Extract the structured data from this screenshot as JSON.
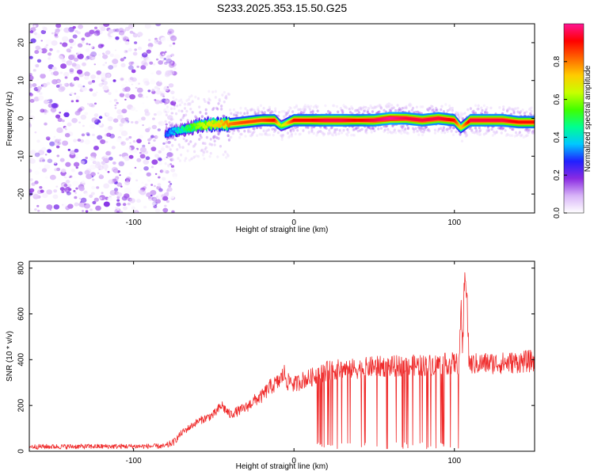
{
  "chart_data": [
    {
      "type": "heatmap",
      "title": "S233.2025.353.15.50.G25",
      "xlabel": "Height of straight line (km)",
      "ylabel": "Frequency (Hz)",
      "xlim": [
        -165,
        150
      ],
      "ylim": [
        -25,
        25
      ],
      "xticks": [
        -100,
        0,
        100
      ],
      "xtick_labels": [
        "-100",
        "0",
        "100"
      ],
      "yticks": [
        -20,
        -10,
        0,
        10,
        20
      ],
      "ytick_labels": [
        "-20",
        "-10",
        "0",
        "10",
        "20"
      ],
      "colorbar": {
        "label": "Normalized spectral amplitude",
        "range": [
          0,
          1
        ],
        "ticks": [
          0.0,
          0.2,
          0.4,
          0.6,
          0.8
        ],
        "tick_labels": [
          "0.0",
          "0.2",
          "0.4",
          "0.6",
          "0.8"
        ],
        "colors": [
          "#ffffff",
          "#d8b4f8",
          "#8a2be2",
          "#2020ff",
          "#00c8ff",
          "#00ff90",
          "#40ff00",
          "#c8ff00",
          "#ffcc00",
          "#ff6600",
          "#ff0000",
          "#ff1493"
        ]
      },
      "noise_region_x": [
        -165,
        -80
      ],
      "ridge": {
        "description": "dominant frequency vs height",
        "x": [
          -80,
          -70,
          -60,
          -50,
          -40,
          -30,
          -20,
          -12,
          -8,
          0,
          10,
          20,
          30,
          40,
          50,
          60,
          70,
          80,
          90,
          100,
          104,
          110,
          120,
          130,
          140,
          150
        ],
        "freq": [
          -4,
          -3,
          -2,
          -1.5,
          -1.5,
          -1,
          -0.5,
          -0.5,
          -2,
          -0.5,
          -0.5,
          -0.5,
          -0.5,
          -0.5,
          -0.5,
          0,
          0,
          -0.5,
          0,
          -0.5,
          -2.5,
          -0.5,
          -0.5,
          -0.5,
          -1,
          -1
        ],
        "amplitude": [
          0.3,
          0.45,
          0.6,
          0.7,
          0.8,
          0.85,
          0.85,
          0.9,
          0.6,
          0.9,
          0.9,
          0.95,
          0.95,
          0.9,
          0.95,
          1.0,
          0.95,
          0.95,
          0.95,
          0.9,
          0.7,
          0.95,
          0.95,
          0.95,
          0.9,
          0.9
        ]
      }
    },
    {
      "type": "line",
      "title": "",
      "xlabel": "Height of straight line (km)",
      "ylabel": "SNR (10 * v/v)",
      "xlim": [
        -165,
        150
      ],
      "ylim": [
        0,
        830
      ],
      "xticks": [
        -100,
        0,
        100
      ],
      "xtick_labels": [
        "-100",
        "0",
        "100"
      ],
      "yticks": [
        0,
        200,
        400,
        600,
        800
      ],
      "ytick_labels": [
        "0",
        "200",
        "400",
        "600",
        "800"
      ],
      "color": "#ef2b2b",
      "series": [
        {
          "name": "SNR",
          "x": [
            -165,
            -80,
            -75,
            -70,
            -60,
            -50,
            -45,
            -40,
            -30,
            -25,
            -20,
            -15,
            -10,
            -8,
            -6,
            -4,
            -2,
            0,
            5,
            10,
            13,
            15,
            20,
            30,
            40,
            50,
            60,
            70,
            80,
            90,
            100,
            103,
            104,
            105,
            106,
            107,
            108,
            109,
            110,
            120,
            130,
            140,
            150
          ],
          "values": [
            20,
            22,
            40,
            80,
            130,
            160,
            200,
            160,
            190,
            220,
            240,
            280,
            300,
            320,
            340,
            300,
            310,
            290,
            310,
            320,
            330,
            340,
            350,
            360,
            360,
            370,
            370,
            375,
            375,
            380,
            385,
            380,
            650,
            400,
            660,
            820,
            640,
            400,
            380,
            385,
            385,
            390,
            395
          ]
        }
      ],
      "dropouts": {
        "description": "downward spikes to near zero within this height range",
        "x_range": [
          14,
          104
        ],
        "min_value": 10
      }
    }
  ]
}
